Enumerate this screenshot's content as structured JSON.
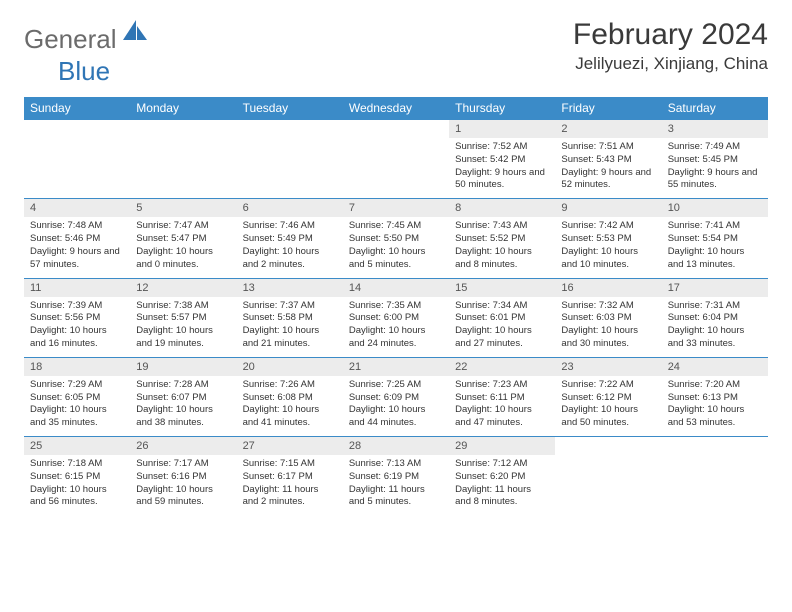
{
  "brand": {
    "part1": "General",
    "part2": "Blue",
    "shape_color": "#2f75b5",
    "text_gray": "#6b6b6b"
  },
  "title": "February 2024",
  "location": "Jelilyuezi, Xinjiang, China",
  "header_bg": "#3b8bc8",
  "day_num_bg": "#ececec",
  "border_color": "#3b8bc8",
  "days_of_week": [
    "Sunday",
    "Monday",
    "Tuesday",
    "Wednesday",
    "Thursday",
    "Friday",
    "Saturday"
  ],
  "weeks": [
    [
      null,
      null,
      null,
      null,
      {
        "n": "1",
        "sr": "7:52 AM",
        "ss": "5:42 PM",
        "dl": "9 hours and 50 minutes."
      },
      {
        "n": "2",
        "sr": "7:51 AM",
        "ss": "5:43 PM",
        "dl": "9 hours and 52 minutes."
      },
      {
        "n": "3",
        "sr": "7:49 AM",
        "ss": "5:45 PM",
        "dl": "9 hours and 55 minutes."
      }
    ],
    [
      {
        "n": "4",
        "sr": "7:48 AM",
        "ss": "5:46 PM",
        "dl": "9 hours and 57 minutes."
      },
      {
        "n": "5",
        "sr": "7:47 AM",
        "ss": "5:47 PM",
        "dl": "10 hours and 0 minutes."
      },
      {
        "n": "6",
        "sr": "7:46 AM",
        "ss": "5:49 PM",
        "dl": "10 hours and 2 minutes."
      },
      {
        "n": "7",
        "sr": "7:45 AM",
        "ss": "5:50 PM",
        "dl": "10 hours and 5 minutes."
      },
      {
        "n": "8",
        "sr": "7:43 AM",
        "ss": "5:52 PM",
        "dl": "10 hours and 8 minutes."
      },
      {
        "n": "9",
        "sr": "7:42 AM",
        "ss": "5:53 PM",
        "dl": "10 hours and 10 minutes."
      },
      {
        "n": "10",
        "sr": "7:41 AM",
        "ss": "5:54 PM",
        "dl": "10 hours and 13 minutes."
      }
    ],
    [
      {
        "n": "11",
        "sr": "7:39 AM",
        "ss": "5:56 PM",
        "dl": "10 hours and 16 minutes."
      },
      {
        "n": "12",
        "sr": "7:38 AM",
        "ss": "5:57 PM",
        "dl": "10 hours and 19 minutes."
      },
      {
        "n": "13",
        "sr": "7:37 AM",
        "ss": "5:58 PM",
        "dl": "10 hours and 21 minutes."
      },
      {
        "n": "14",
        "sr": "7:35 AM",
        "ss": "6:00 PM",
        "dl": "10 hours and 24 minutes."
      },
      {
        "n": "15",
        "sr": "7:34 AM",
        "ss": "6:01 PM",
        "dl": "10 hours and 27 minutes."
      },
      {
        "n": "16",
        "sr": "7:32 AM",
        "ss": "6:03 PM",
        "dl": "10 hours and 30 minutes."
      },
      {
        "n": "17",
        "sr": "7:31 AM",
        "ss": "6:04 PM",
        "dl": "10 hours and 33 minutes."
      }
    ],
    [
      {
        "n": "18",
        "sr": "7:29 AM",
        "ss": "6:05 PM",
        "dl": "10 hours and 35 minutes."
      },
      {
        "n": "19",
        "sr": "7:28 AM",
        "ss": "6:07 PM",
        "dl": "10 hours and 38 minutes."
      },
      {
        "n": "20",
        "sr": "7:26 AM",
        "ss": "6:08 PM",
        "dl": "10 hours and 41 minutes."
      },
      {
        "n": "21",
        "sr": "7:25 AM",
        "ss": "6:09 PM",
        "dl": "10 hours and 44 minutes."
      },
      {
        "n": "22",
        "sr": "7:23 AM",
        "ss": "6:11 PM",
        "dl": "10 hours and 47 minutes."
      },
      {
        "n": "23",
        "sr": "7:22 AM",
        "ss": "6:12 PM",
        "dl": "10 hours and 50 minutes."
      },
      {
        "n": "24",
        "sr": "7:20 AM",
        "ss": "6:13 PM",
        "dl": "10 hours and 53 minutes."
      }
    ],
    [
      {
        "n": "25",
        "sr": "7:18 AM",
        "ss": "6:15 PM",
        "dl": "10 hours and 56 minutes."
      },
      {
        "n": "26",
        "sr": "7:17 AM",
        "ss": "6:16 PM",
        "dl": "10 hours and 59 minutes."
      },
      {
        "n": "27",
        "sr": "7:15 AM",
        "ss": "6:17 PM",
        "dl": "11 hours and 2 minutes."
      },
      {
        "n": "28",
        "sr": "7:13 AM",
        "ss": "6:19 PM",
        "dl": "11 hours and 5 minutes."
      },
      {
        "n": "29",
        "sr": "7:12 AM",
        "ss": "6:20 PM",
        "dl": "11 hours and 8 minutes."
      },
      null,
      null
    ]
  ],
  "labels": {
    "sunrise": "Sunrise: ",
    "sunset": "Sunset: ",
    "daylight": "Daylight: "
  }
}
